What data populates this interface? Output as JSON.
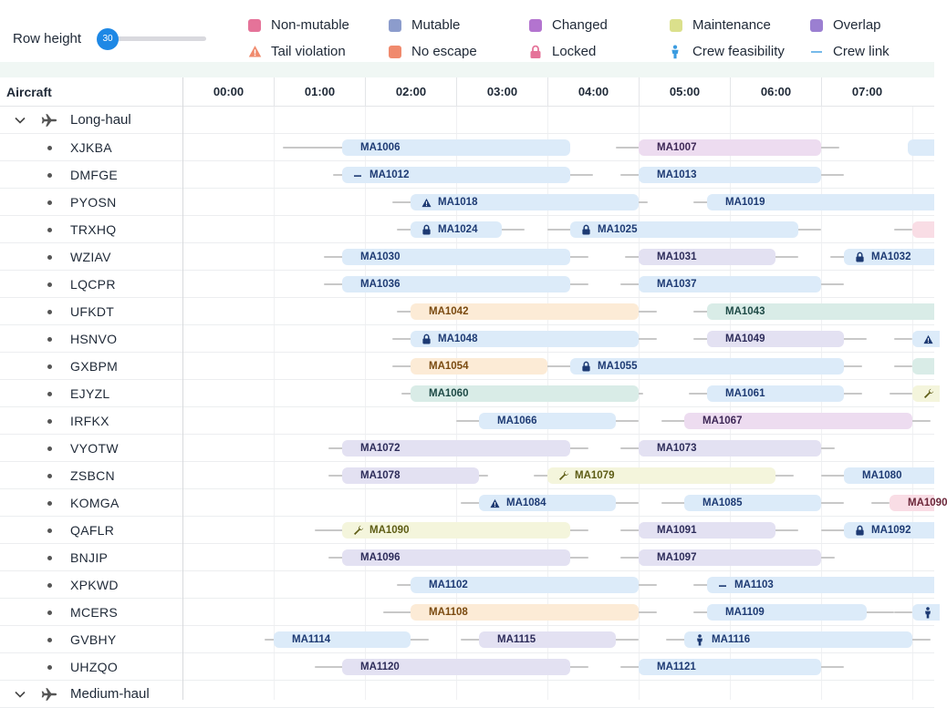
{
  "toolbar": {
    "row_height_label": "Row height",
    "row_height_value": "30"
  },
  "legend": [
    {
      "label": "Non-mutable",
      "kind": "swatch",
      "color": "#e57399"
    },
    {
      "label": "Mutable",
      "kind": "swatch",
      "color": "#8c9ccc"
    },
    {
      "label": "Changed",
      "kind": "swatch",
      "color": "#b374cf"
    },
    {
      "label": "Maintenance",
      "kind": "swatch",
      "color": "#dbe08c"
    },
    {
      "label": "Overlap",
      "kind": "swatch",
      "color": "#9b7fd1"
    },
    {
      "label": "Tail violation",
      "kind": "warning-icon",
      "color": "#f08a6d"
    },
    {
      "label": "No escape",
      "kind": "swatch",
      "color": "#f08a6d"
    },
    {
      "label": "Locked",
      "kind": "lock-icon",
      "color": "#e57399"
    },
    {
      "label": "Crew feasibility",
      "kind": "person-icon",
      "color": "#3b9ce0"
    },
    {
      "label": "Crew link",
      "kind": "line-icon",
      "color": "#3b9ce0"
    }
  ],
  "grid": {
    "column_header": "Aircraft",
    "start_hour": 0,
    "ticks": [
      "00:00",
      "01:00",
      "02:00",
      "03:00",
      "04:00",
      "05:00",
      "06:00",
      "07:00"
    ]
  },
  "colors": {
    "blue": {
      "bg": "#dcebf9",
      "fg": "#1d3a73"
    },
    "purple": {
      "bg": "#eddcf0",
      "fg": "#3d2756"
    },
    "lavender": {
      "bg": "#e3e1f2",
      "fg": "#2d2c5a"
    },
    "orange": {
      "bg": "#fcebd6",
      "fg": "#7a4a10"
    },
    "teal": {
      "bg": "#d9ece7",
      "fg": "#1e4a46"
    },
    "yellow": {
      "bg": "#f4f5dc",
      "fg": "#5d5c14"
    },
    "pink": {
      "bg": "#f9dde5",
      "fg": "#6b2639"
    }
  },
  "groups": [
    {
      "name": "Long-haul",
      "rows": [
        {
          "reg": "XJKBA",
          "flights": [
            {
              "id": "MA1006",
              "start": 1.75,
              "end": 4.25,
              "color": "blue",
              "conn": [
                1.1,
                3.9
              ]
            },
            {
              "id": "MA1007",
              "start": 5.0,
              "end": 7.0,
              "color": "purple",
              "conn": [
                4.75,
                7.2
              ]
            },
            {
              "id": "",
              "start": 7.95,
              "end": 8.4,
              "color": "blue",
              "conn": [
                7.95,
                8.4
              ]
            }
          ]
        },
        {
          "reg": "DMFGE",
          "flights": [
            {
              "id": "MA1012",
              "start": 1.75,
              "end": 4.25,
              "color": "blue",
              "icon": "dash",
              "conn": [
                1.65,
                4.5
              ]
            },
            {
              "id": "MA1013",
              "start": 5.0,
              "end": 7.0,
              "color": "blue",
              "conn": [
                4.8,
                7.25
              ]
            }
          ]
        },
        {
          "reg": "PYOSN",
          "flights": [
            {
              "id": "MA1018",
              "start": 2.5,
              "end": 5.0,
              "color": "blue",
              "icon": "warning",
              "conn": [
                2.3,
                5.1
              ]
            },
            {
              "id": "MA1019",
              "start": 5.75,
              "end": 8.5,
              "color": "blue",
              "conn": [
                5.6,
                8.5
              ]
            }
          ]
        },
        {
          "reg": "TRXHQ",
          "flights": [
            {
              "id": "MA1024",
              "start": 2.5,
              "end": 3.5,
              "color": "blue",
              "icon": "lock",
              "conn": [
                2.35,
                3.75
              ]
            },
            {
              "id": "MA1025",
              "start": 4.25,
              "end": 6.75,
              "color": "blue",
              "icon": "lock",
              "conn": [
                4.0,
                7.0
              ]
            },
            {
              "id": "",
              "start": 8.0,
              "end": 8.4,
              "color": "pink",
              "conn": [
                7.8,
                8.0
              ]
            }
          ]
        },
        {
          "reg": "WZIAV",
          "flights": [
            {
              "id": "MA1030",
              "start": 1.75,
              "end": 4.25,
              "color": "blue",
              "conn": [
                1.55,
                4.45
              ]
            },
            {
              "id": "MA1031",
              "start": 5.0,
              "end": 6.5,
              "color": "lavender",
              "conn": [
                4.85,
                6.75
              ]
            },
            {
              "id": "MA1032",
              "start": 7.25,
              "end": 8.5,
              "color": "blue",
              "icon": "lock",
              "conn": [
                7.1,
                8.5
              ]
            }
          ]
        },
        {
          "reg": "LQCPR",
          "flights": [
            {
              "id": "MA1036",
              "start": 1.75,
              "end": 4.25,
              "color": "blue",
              "conn": [
                1.55,
                4.45
              ]
            },
            {
              "id": "MA1037",
              "start": 5.0,
              "end": 7.0,
              "color": "blue",
              "conn": [
                4.8,
                7.25
              ]
            }
          ]
        },
        {
          "reg": "UFKDT",
          "flights": [
            {
              "id": "MA1042",
              "start": 2.5,
              "end": 5.0,
              "color": "orange",
              "conn": [
                2.35,
                5.2
              ]
            },
            {
              "id": "MA1043",
              "start": 5.75,
              "end": 8.5,
              "color": "teal",
              "conn": [
                5.6,
                8.5
              ]
            }
          ]
        },
        {
          "reg": "HSNVO",
          "flights": [
            {
              "id": "MA1048",
              "start": 2.5,
              "end": 5.0,
              "color": "blue",
              "icon": "lock",
              "conn": [
                2.3,
                5.2
              ]
            },
            {
              "id": "MA1049",
              "start": 5.75,
              "end": 7.25,
              "color": "lavender",
              "conn": [
                5.6,
                7.5
              ]
            },
            {
              "id": "",
              "start": 8.0,
              "end": 8.4,
              "color": "blue",
              "icon": "warning",
              "conn": [
                7.8,
                8.0
              ]
            }
          ]
        },
        {
          "reg": "GXBPM",
          "flights": [
            {
              "id": "MA1054",
              "start": 2.5,
              "end": 4.0,
              "color": "orange",
              "conn": [
                2.3,
                4.25
              ]
            },
            {
              "id": "MA1055",
              "start": 4.25,
              "end": 7.25,
              "color": "blue",
              "icon": "lock",
              "conn": [
                4.1,
                7.45
              ]
            },
            {
              "id": "",
              "start": 8.0,
              "end": 8.4,
              "color": "teal",
              "conn": [
                7.8,
                8.0
              ]
            }
          ]
        },
        {
          "reg": "EJYZL",
          "flights": [
            {
              "id": "MA1060",
              "start": 2.5,
              "end": 5.0,
              "color": "teal",
              "conn": [
                2.4,
                5.05
              ]
            },
            {
              "id": "MA1061",
              "start": 5.75,
              "end": 7.25,
              "color": "blue",
              "conn": [
                5.55,
                7.45
              ]
            },
            {
              "id": "",
              "start": 8.0,
              "end": 8.4,
              "color": "yellow",
              "icon": "wrench",
              "conn": [
                7.75,
                8.0
              ]
            }
          ]
        },
        {
          "reg": "IRFKX",
          "flights": [
            {
              "id": "MA1066",
              "start": 3.25,
              "end": 4.75,
              "color": "blue",
              "conn": [
                3.0,
                5.0
              ]
            },
            {
              "id": "MA1067",
              "start": 5.5,
              "end": 8.0,
              "color": "purple",
              "conn": [
                5.25,
                8.2
              ]
            }
          ]
        },
        {
          "reg": "VYOTW",
          "flights": [
            {
              "id": "MA1072",
              "start": 1.75,
              "end": 4.25,
              "color": "lavender",
              "conn": [
                1.6,
                4.45
              ]
            },
            {
              "id": "MA1073",
              "start": 5.0,
              "end": 7.0,
              "color": "lavender",
              "conn": [
                4.8,
                7.15
              ]
            }
          ]
        },
        {
          "reg": "ZSBCN",
          "flights": [
            {
              "id": "MA1078",
              "start": 1.75,
              "end": 3.25,
              "color": "lavender",
              "conn": [
                1.6,
                3.35
              ]
            },
            {
              "id": "MA1079",
              "start": 4.0,
              "end": 6.5,
              "color": "yellow",
              "icon": "wrench",
              "conn": [
                3.85,
                6.7
              ]
            },
            {
              "id": "MA1080",
              "start": 7.25,
              "end": 8.5,
              "color": "blue",
              "conn": [
                7.0,
                8.5
              ]
            }
          ]
        },
        {
          "reg": "KOMGA",
          "flights": [
            {
              "id": "MA1084",
              "start": 3.25,
              "end": 4.75,
              "color": "blue",
              "icon": "warning",
              "conn": [
                3.05,
                5.0
              ]
            },
            {
              "id": "MA1085",
              "start": 5.5,
              "end": 7.0,
              "color": "blue",
              "conn": [
                5.25,
                7.25
              ]
            },
            {
              "id": "MA1090",
              "start": 7.75,
              "end": 8.5,
              "color": "pink",
              "conn": [
                7.55,
                7.75
              ]
            }
          ]
        },
        {
          "reg": "QAFLR",
          "flights": [
            {
              "id": "MA1090",
              "start": 1.75,
              "end": 4.25,
              "color": "yellow",
              "icon": "wrench",
              "conn": [
                1.45,
                4.45
              ]
            },
            {
              "id": "MA1091",
              "start": 5.0,
              "end": 6.5,
              "color": "lavender",
              "conn": [
                4.8,
                6.75
              ]
            },
            {
              "id": "MA1092",
              "start": 7.25,
              "end": 8.5,
              "color": "blue",
              "icon": "lock",
              "conn": [
                7.0,
                8.5
              ]
            }
          ]
        },
        {
          "reg": "BNJIP",
          "flights": [
            {
              "id": "MA1096",
              "start": 1.75,
              "end": 4.25,
              "color": "lavender",
              "conn": [
                1.6,
                4.45
              ]
            },
            {
              "id": "MA1097",
              "start": 5.0,
              "end": 7.0,
              "color": "lavender",
              "conn": [
                4.8,
                7.15
              ]
            }
          ]
        },
        {
          "reg": "XPKWD",
          "flights": [
            {
              "id": "MA1102",
              "start": 2.5,
              "end": 5.0,
              "color": "blue",
              "conn": [
                2.35,
                5.2
              ]
            },
            {
              "id": "MA1103",
              "start": 5.75,
              "end": 8.5,
              "color": "blue",
              "icon": "dash",
              "conn": [
                5.6,
                8.5
              ]
            }
          ]
        },
        {
          "reg": "MCERS",
          "flights": [
            {
              "id": "MA1108",
              "start": 2.5,
              "end": 5.0,
              "color": "orange",
              "conn": [
                2.2,
                5.2
              ]
            },
            {
              "id": "MA1109",
              "start": 5.75,
              "end": 7.5,
              "color": "blue",
              "conn": [
                5.6,
                7.8
              ]
            },
            {
              "id": "",
              "start": 8.0,
              "end": 8.4,
              "color": "blue",
              "icon": "person",
              "conn": [
                7.8,
                8.0
              ]
            }
          ]
        },
        {
          "reg": "GVBHY",
          "flights": [
            {
              "id": "MA1114",
              "start": 1.0,
              "end": 2.5,
              "color": "blue",
              "conn": [
                0.9,
                2.7
              ]
            },
            {
              "id": "MA1115",
              "start": 3.25,
              "end": 4.75,
              "color": "lavender",
              "conn": [
                3.05,
                5.0
              ]
            },
            {
              "id": "MA1116",
              "start": 5.5,
              "end": 8.0,
              "color": "blue",
              "icon": "person",
              "conn": [
                5.3,
                8.2
              ]
            }
          ]
        },
        {
          "reg": "UHZQO",
          "flights": [
            {
              "id": "MA1120",
              "start": 1.75,
              "end": 4.25,
              "color": "lavender",
              "conn": [
                1.45,
                4.45
              ]
            },
            {
              "id": "MA1121",
              "start": 5.0,
              "end": 7.0,
              "color": "blue",
              "conn": [
                4.8,
                7.25
              ]
            }
          ]
        }
      ]
    },
    {
      "name": "Medium-haul",
      "rows": []
    }
  ]
}
